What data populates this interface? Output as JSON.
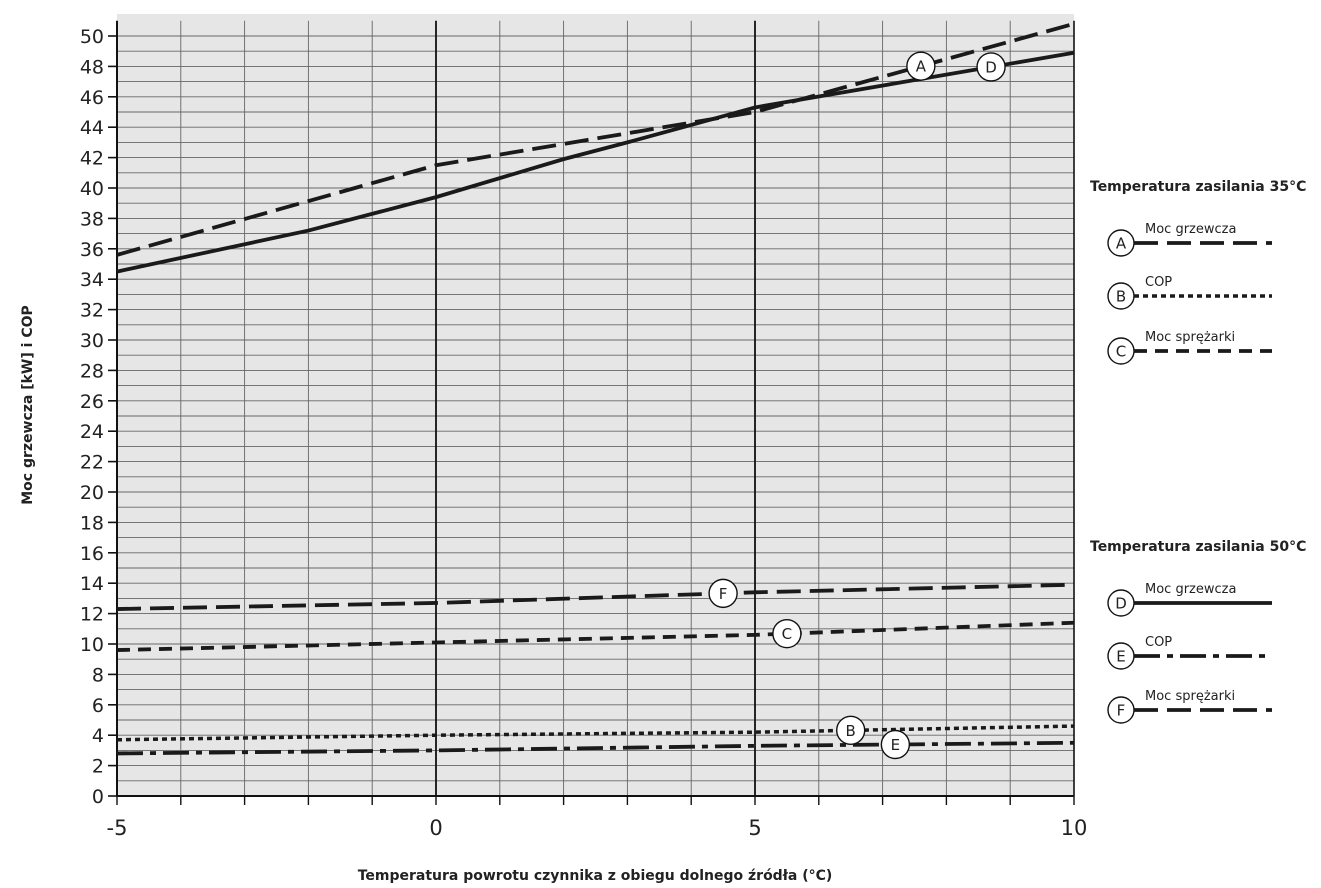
{
  "chart_data": {
    "type": "line",
    "xlabel": "Temperatura powrotu czynnika z obiegu dolnego źródła (°C)",
    "ylabel": "Moc grzewcza [kW] i COP",
    "xlim": [
      -5,
      10
    ],
    "ylim": [
      0,
      51
    ],
    "x_ticks": [
      "-5",
      "0",
      "5",
      "10"
    ],
    "y_ticks": [
      "0",
      "2",
      "4",
      "6",
      "8",
      "10",
      "12",
      "14",
      "16",
      "18",
      "20",
      "22",
      "24",
      "26",
      "28",
      "30",
      "32",
      "34",
      "36",
      "38",
      "40",
      "42",
      "44",
      "46",
      "48",
      "50"
    ],
    "grid": true,
    "series": [
      {
        "id": "A",
        "name": "Moc grzewcza",
        "group": "35",
        "style": "longdash",
        "x": [
          -5,
          0,
          5,
          10
        ],
        "y": [
          35.6,
          41.5,
          45.0,
          50.8
        ],
        "marker_x": 7.6
      },
      {
        "id": "B",
        "name": "COP",
        "group": "35",
        "style": "dotted",
        "x": [
          -5,
          0,
          5,
          10
        ],
        "y": [
          3.7,
          4.0,
          4.2,
          4.6
        ],
        "marker_x": 6.5
      },
      {
        "id": "C",
        "name": "Moc sprężarki",
        "group": "35",
        "style": "dashed",
        "x": [
          -5,
          0,
          5,
          10
        ],
        "y": [
          9.6,
          10.1,
          10.6,
          11.4
        ],
        "marker_x": 5.5
      },
      {
        "id": "D",
        "name": "Moc grzewcza",
        "group": "50",
        "style": "solid",
        "x": [
          -5,
          -2,
          0,
          2,
          3,
          5,
          10
        ],
        "y": [
          34.5,
          37.2,
          39.4,
          41.9,
          43.0,
          45.3,
          48.9
        ],
        "marker_x": 8.7
      },
      {
        "id": "E",
        "name": "COP",
        "group": "50",
        "style": "dashdot",
        "x": [
          -5,
          0,
          5,
          10
        ],
        "y": [
          2.8,
          3.0,
          3.3,
          3.5
        ],
        "marker_x": 7.2
      },
      {
        "id": "F",
        "name": "Moc sprężarki",
        "group": "50",
        "style": "longdash",
        "x": [
          -5,
          0,
          5,
          10
        ],
        "y": [
          12.3,
          12.7,
          13.4,
          13.9
        ],
        "marker_x": 4.5
      }
    ]
  },
  "legend": {
    "group1_title": "Temperatura zasilania 35°C",
    "group2_title": "Temperatura zasilania 50°C",
    "entries": [
      {
        "letter": "A",
        "label": "Moc grzewcza",
        "style": "longdash"
      },
      {
        "letter": "B",
        "label": "COP",
        "style": "dotted"
      },
      {
        "letter": "C",
        "label": "Moc sprężarki",
        "style": "dashed"
      },
      {
        "letter": "D",
        "label": "Moc grzewcza",
        "style": "solid"
      },
      {
        "letter": "E",
        "label": "COP",
        "style": "dashdot"
      },
      {
        "letter": "F",
        "label": "Moc sprężarki",
        "style": "longdash"
      }
    ]
  },
  "colors": {
    "plot_bg": "#e6e6e6",
    "grid": "#666666",
    "major_grid": "#111111",
    "line": "#1a1a1a"
  }
}
